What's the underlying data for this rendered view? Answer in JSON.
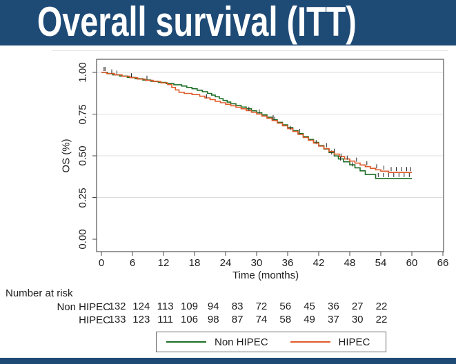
{
  "banner": {
    "title": "Overall survival (ITT)"
  },
  "colors": {
    "banner_bg": "#1e4a76",
    "title_fg": "#ffffff",
    "non_hipec": "#1d6e26",
    "hipec": "#e05a2a",
    "grid": "#dcdcdc",
    "frame": "#555555",
    "text": "#1c1c1c",
    "censor": "#222222"
  },
  "chart_data": {
    "type": "line",
    "subtype": "kaplan_meier_step",
    "title": "",
    "xlabel": "Time (months)",
    "ylabel": "OS (%)",
    "xlim": [
      0,
      66
    ],
    "ylim": [
      0,
      1
    ],
    "xticks": [
      0,
      6,
      12,
      18,
      24,
      30,
      36,
      42,
      48,
      54,
      60,
      66
    ],
    "ytick_values": [
      0,
      0.25,
      0.5,
      0.75,
      1
    ],
    "ytick_labels": [
      "0.00",
      "0.25",
      "0.50",
      "0.75",
      "1.00"
    ],
    "grid": "horizontal",
    "legend_position": "bottom-center",
    "series": [
      {
        "name": "Non HIPEC",
        "color": "#1d6e26",
        "steps": [
          [
            0,
            1.0
          ],
          [
            1.2,
            0.992
          ],
          [
            2.2,
            0.985
          ],
          [
            3.5,
            0.978
          ],
          [
            5,
            0.97
          ],
          [
            6.5,
            0.962
          ],
          [
            8,
            0.954
          ],
          [
            9.5,
            0.947
          ],
          [
            11,
            0.94
          ],
          [
            12.5,
            0.933
          ],
          [
            14,
            0.926
          ],
          [
            15.5,
            0.918
          ],
          [
            16.5,
            0.91
          ],
          [
            17.5,
            0.902
          ],
          [
            18.5,
            0.893
          ],
          [
            19.5,
            0.884
          ],
          [
            20.5,
            0.874
          ],
          [
            21.3,
            0.864
          ],
          [
            22,
            0.854
          ],
          [
            22.8,
            0.843
          ],
          [
            23.5,
            0.832
          ],
          [
            24.3,
            0.822
          ],
          [
            25,
            0.812
          ],
          [
            26,
            0.802
          ],
          [
            27,
            0.792
          ],
          [
            28,
            0.782
          ],
          [
            29,
            0.77
          ],
          [
            30,
            0.758
          ],
          [
            31,
            0.745
          ],
          [
            32,
            0.731
          ],
          [
            33,
            0.716
          ],
          [
            34,
            0.701
          ],
          [
            35,
            0.686
          ],
          [
            36,
            0.669
          ],
          [
            37,
            0.651
          ],
          [
            38,
            0.633
          ],
          [
            39,
            0.615
          ],
          [
            40,
            0.598
          ],
          [
            41,
            0.58
          ],
          [
            42,
            0.561
          ],
          [
            43,
            0.541
          ],
          [
            44,
            0.52
          ],
          [
            45,
            0.499
          ],
          [
            45.8,
            0.481
          ],
          [
            46.8,
            0.464
          ],
          [
            48,
            0.446
          ],
          [
            49,
            0.428
          ],
          [
            50,
            0.41
          ],
          [
            51,
            0.388
          ],
          [
            53,
            0.364
          ],
          [
            60,
            0.364
          ]
        ],
        "censor_marks": [
          [
            0.7,
            1.0
          ],
          [
            3,
            0.978
          ],
          [
            5.8,
            0.962
          ],
          [
            8.8,
            0.947
          ],
          [
            30.5,
            0.745
          ],
          [
            33.5,
            0.701
          ],
          [
            41.5,
            0.561
          ],
          [
            44.5,
            0.499
          ],
          [
            46.2,
            0.464
          ],
          [
            48.5,
            0.428
          ],
          [
            53.5,
            0.364
          ],
          [
            54.5,
            0.364
          ],
          [
            55.5,
            0.364
          ],
          [
            56.5,
            0.364
          ],
          [
            57.5,
            0.364
          ],
          [
            58.5,
            0.364
          ],
          [
            59.5,
            0.364
          ]
        ]
      },
      {
        "name": "HIPEC",
        "color": "#e05a2a",
        "steps": [
          [
            0,
            1.0
          ],
          [
            1,
            0.993
          ],
          [
            2.5,
            0.985
          ],
          [
            4,
            0.977
          ],
          [
            5.5,
            0.968
          ],
          [
            7,
            0.96
          ],
          [
            8.5,
            0.952
          ],
          [
            10,
            0.945
          ],
          [
            11.5,
            0.937
          ],
          [
            12.8,
            0.927
          ],
          [
            13.6,
            0.91
          ],
          [
            14.3,
            0.895
          ],
          [
            15,
            0.881
          ],
          [
            16,
            0.874
          ],
          [
            17.5,
            0.867
          ],
          [
            19,
            0.857
          ],
          [
            20,
            0.847
          ],
          [
            21,
            0.837
          ],
          [
            22,
            0.827
          ],
          [
            23,
            0.818
          ],
          [
            24,
            0.809
          ],
          [
            25,
            0.8
          ],
          [
            26,
            0.791
          ],
          [
            27,
            0.782
          ],
          [
            28,
            0.771
          ],
          [
            29,
            0.761
          ],
          [
            30,
            0.75
          ],
          [
            31,
            0.738
          ],
          [
            32,
            0.725
          ],
          [
            33,
            0.711
          ],
          [
            34,
            0.696
          ],
          [
            35,
            0.68
          ],
          [
            36,
            0.663
          ],
          [
            37,
            0.646
          ],
          [
            38,
            0.628
          ],
          [
            39,
            0.61
          ],
          [
            40,
            0.593
          ],
          [
            41,
            0.576
          ],
          [
            42,
            0.558
          ],
          [
            43,
            0.543
          ],
          [
            44,
            0.526
          ],
          [
            45,
            0.51
          ],
          [
            46,
            0.495
          ],
          [
            47,
            0.481
          ],
          [
            48,
            0.468
          ],
          [
            49,
            0.456
          ],
          [
            50,
            0.445
          ],
          [
            51,
            0.435
          ],
          [
            52,
            0.425
          ],
          [
            53,
            0.416
          ],
          [
            54,
            0.408
          ],
          [
            55.5,
            0.4
          ],
          [
            60,
            0.4
          ]
        ],
        "censor_marks": [
          [
            0.5,
            1.0
          ],
          [
            2,
            0.985
          ],
          [
            20.3,
            0.837
          ],
          [
            28.5,
            0.761
          ],
          [
            33.2,
            0.711
          ],
          [
            36.5,
            0.646
          ],
          [
            38.3,
            0.628
          ],
          [
            43.5,
            0.543
          ],
          [
            45,
            0.51
          ],
          [
            46.3,
            0.481
          ],
          [
            47.5,
            0.468
          ],
          [
            49.3,
            0.456
          ],
          [
            51.3,
            0.435
          ],
          [
            53.2,
            0.416
          ],
          [
            54.6,
            0.408
          ],
          [
            56,
            0.4
          ],
          [
            57,
            0.4
          ],
          [
            58,
            0.4
          ],
          [
            59,
            0.4
          ],
          [
            59.8,
            0.4
          ]
        ]
      }
    ]
  },
  "risk_table": {
    "title": "Number at risk",
    "times": [
      0,
      6,
      12,
      18,
      24,
      30,
      36,
      42,
      48,
      54,
      60,
      66
    ],
    "rows": [
      {
        "label": "Non HIPEC",
        "counts": [
          "132",
          "124",
          "113",
          "109",
          "94",
          "83",
          "72",
          "56",
          "45",
          "36",
          "27",
          "22"
        ]
      },
      {
        "label": "HIPEC",
        "counts": [
          "133",
          "123",
          "111",
          "106",
          "98",
          "87",
          "74",
          "58",
          "49",
          "37",
          "30",
          "22"
        ]
      }
    ]
  },
  "legend": {
    "items": [
      {
        "label": "Non HIPEC",
        "color": "#1d6e26"
      },
      {
        "label": "HIPEC",
        "color": "#e05a2a"
      }
    ]
  }
}
